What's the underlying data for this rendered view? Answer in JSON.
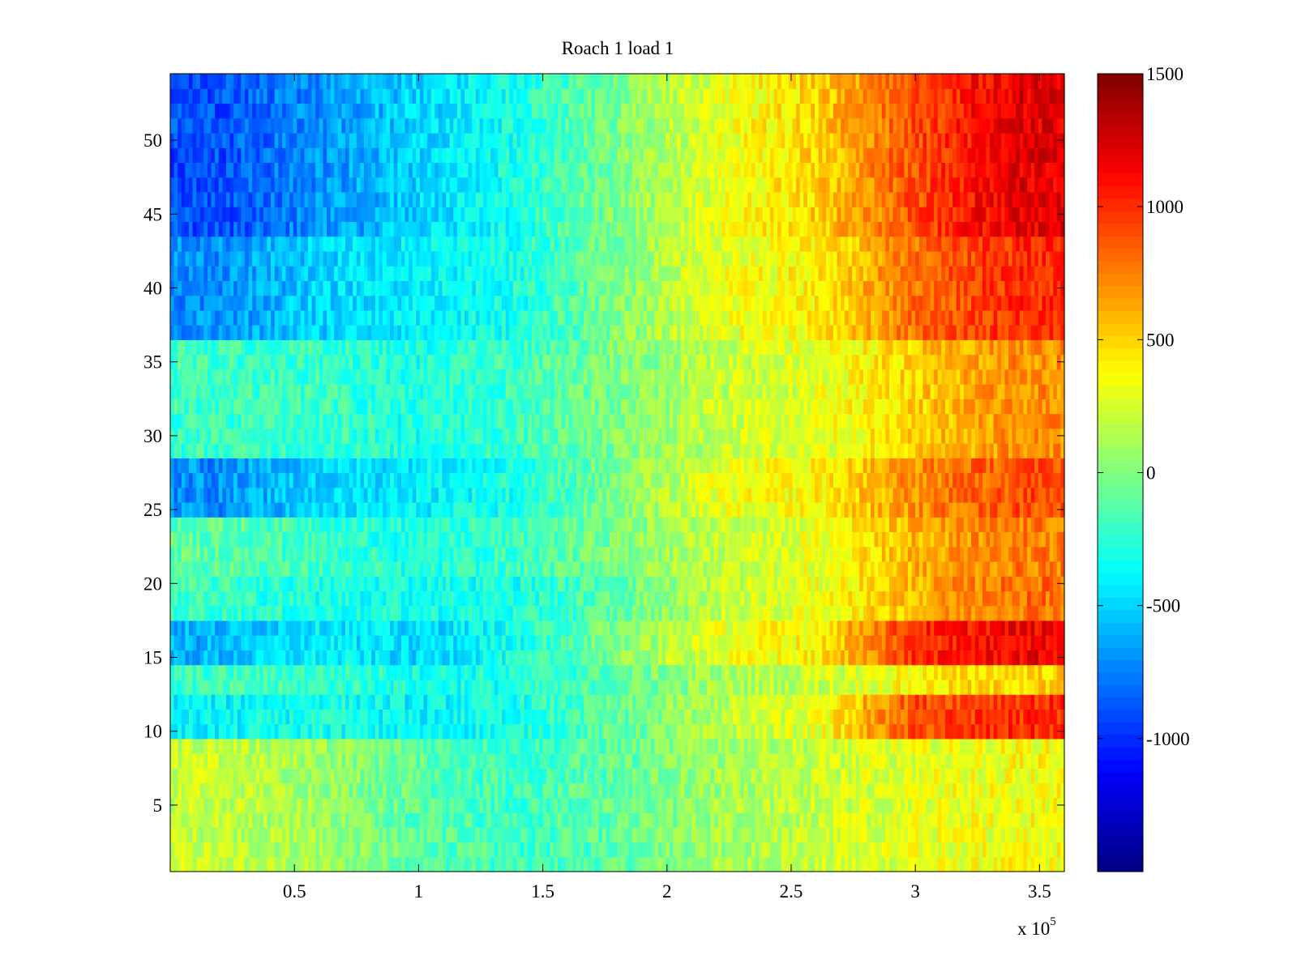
{
  "chart_data": {
    "type": "heatmap",
    "title": "Roach 1 load 1",
    "xlabel": "",
    "ylabel": "",
    "x_exponent_label": "x 10",
    "x_exponent_power": "5",
    "xlim": [
      0,
      360000
    ],
    "ylim": [
      0.5,
      54.5
    ],
    "x_ticks": [
      {
        "value": 50000,
        "label": "0.5"
      },
      {
        "value": 100000,
        "label": "1"
      },
      {
        "value": 150000,
        "label": "1.5"
      },
      {
        "value": 200000,
        "label": "2"
      },
      {
        "value": 250000,
        "label": "2.5"
      },
      {
        "value": 300000,
        "label": "3"
      },
      {
        "value": 350000,
        "label": "3.5"
      }
    ],
    "y_ticks": [
      {
        "value": 5,
        "label": "5"
      },
      {
        "value": 10,
        "label": "10"
      },
      {
        "value": 15,
        "label": "15"
      },
      {
        "value": 20,
        "label": "20"
      },
      {
        "value": 25,
        "label": "25"
      },
      {
        "value": 30,
        "label": "30"
      },
      {
        "value": 35,
        "label": "35"
      },
      {
        "value": 40,
        "label": "40"
      },
      {
        "value": 45,
        "label": "45"
      },
      {
        "value": 50,
        "label": "50"
      }
    ],
    "colorbar": {
      "colormap": "jet",
      "clim": [
        -1500,
        1500
      ],
      "ticks": [
        {
          "value": 1500,
          "label": "1500"
        },
        {
          "value": 1000,
          "label": "1000"
        },
        {
          "value": 500,
          "label": "500"
        },
        {
          "value": 0,
          "label": "0"
        },
        {
          "value": -500,
          "label": "-500"
        },
        {
          "value": -1000,
          "label": "-1000"
        }
      ]
    },
    "rows": 54,
    "column_x_centers": [
      20000,
      60000,
      100000,
      140000,
      180000,
      220000,
      260000,
      300000,
      340000
    ],
    "row_profile_values": [
      {
        "rows": [
          1,
          9
        ],
        "values": [
          200,
          100,
          -100,
          -200,
          -100,
          100,
          200,
          300,
          350
        ]
      },
      {
        "rows": [
          10,
          12
        ],
        "values": [
          -400,
          -300,
          -400,
          -300,
          -100,
          150,
          300,
          900,
          1000
        ]
      },
      {
        "rows": [
          13,
          14
        ],
        "values": [
          -200,
          -200,
          -300,
          -300,
          -100,
          100,
          200,
          400,
          500
        ]
      },
      {
        "rows": [
          15,
          17
        ],
        "values": [
          -600,
          -400,
          -500,
          -300,
          0,
          300,
          400,
          1000,
          1150
        ]
      },
      {
        "rows": [
          18,
          20
        ],
        "values": [
          -200,
          -300,
          -300,
          -300,
          -100,
          200,
          300,
          600,
          800
        ]
      },
      {
        "rows": [
          21,
          24
        ],
        "values": [
          -100,
          -200,
          -300,
          -200,
          0,
          200,
          300,
          600,
          750
        ]
      },
      {
        "rows": [
          25,
          28
        ],
        "values": [
          -700,
          -500,
          -400,
          -300,
          0,
          300,
          400,
          700,
          900
        ]
      },
      {
        "rows": [
          29,
          36
        ],
        "values": [
          -200,
          -200,
          -300,
          -200,
          0,
          200,
          300,
          500,
          700
        ]
      },
      {
        "rows": [
          37,
          43
        ],
        "values": [
          -700,
          -500,
          -400,
          -300,
          0,
          300,
          400,
          800,
          1000
        ]
      },
      {
        "rows": [
          44,
          54
        ],
        "values": [
          -900,
          -700,
          -500,
          -300,
          0,
          300,
          500,
          900,
          1200
        ]
      }
    ]
  }
}
